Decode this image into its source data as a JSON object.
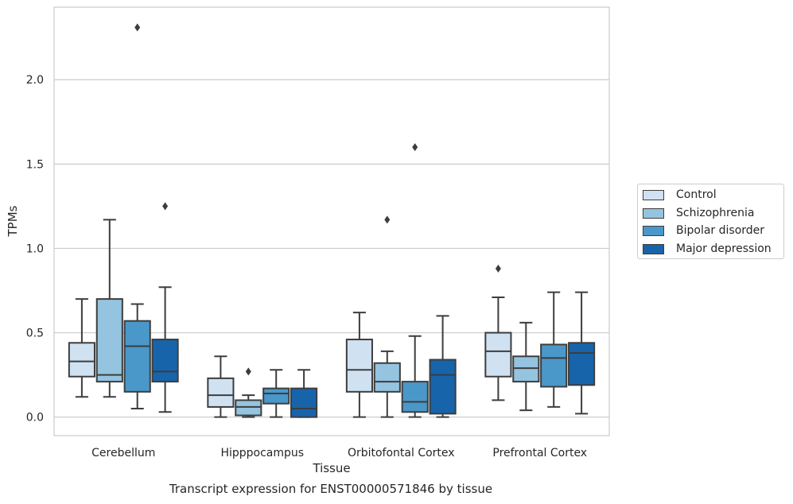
{
  "chart_data": {
    "type": "box",
    "title": "",
    "caption": "Transcript expression for ENST00000571846 by tissue",
    "xlabel": "Tissue",
    "ylabel": "TPMs",
    "ylim": [
      -0.11,
      2.43
    ],
    "yticks": [
      "0.0",
      "0.5",
      "1.0",
      "1.5",
      "2.0"
    ],
    "ytick_values": [
      0.0,
      0.5,
      1.0,
      1.5,
      2.0
    ],
    "grid": "horizontal",
    "legend_position": "right",
    "categories": [
      "Cerebellum",
      "Hipppocampus",
      "Orbitofontal Cortex",
      "Prefrontal Cortex"
    ],
    "series": [
      {
        "name": "Control",
        "color": "#d0e1f2",
        "boxes": [
          {
            "whisker_low": 0.12,
            "q1": 0.24,
            "median": 0.33,
            "q3": 0.44,
            "whisker_high": 0.7,
            "outliers": []
          },
          {
            "whisker_low": 0.0,
            "q1": 0.06,
            "median": 0.13,
            "q3": 0.23,
            "whisker_high": 0.36,
            "outliers": []
          },
          {
            "whisker_low": 0.0,
            "q1": 0.15,
            "median": 0.28,
            "q3": 0.46,
            "whisker_high": 0.62,
            "outliers": []
          },
          {
            "whisker_low": 0.1,
            "q1": 0.24,
            "median": 0.39,
            "q3": 0.5,
            "whisker_high": 0.71,
            "outliers": [
              0.88
            ]
          }
        ]
      },
      {
        "name": "Schizophrenia",
        "color": "#94c4df",
        "boxes": [
          {
            "whisker_low": 0.12,
            "q1": 0.21,
            "median": 0.25,
            "q3": 0.7,
            "whisker_high": 1.17,
            "outliers": []
          },
          {
            "whisker_low": 0.0,
            "q1": 0.01,
            "median": 0.06,
            "q3": 0.1,
            "whisker_high": 0.13,
            "outliers": [
              0.27
            ]
          },
          {
            "whisker_low": 0.0,
            "q1": 0.15,
            "median": 0.21,
            "q3": 0.32,
            "whisker_high": 0.39,
            "outliers": [
              1.17
            ]
          },
          {
            "whisker_low": 0.04,
            "q1": 0.21,
            "median": 0.29,
            "q3": 0.36,
            "whisker_high": 0.56,
            "outliers": []
          }
        ]
      },
      {
        "name": "Bipolar disorder",
        "color": "#4a98c9",
        "boxes": [
          {
            "whisker_low": 0.05,
            "q1": 0.15,
            "median": 0.42,
            "q3": 0.57,
            "whisker_high": 0.67,
            "outliers": [
              2.31
            ]
          },
          {
            "whisker_low": 0.0,
            "q1": 0.08,
            "median": 0.14,
            "q3": 0.17,
            "whisker_high": 0.28,
            "outliers": []
          },
          {
            "whisker_low": 0.0,
            "q1": 0.03,
            "median": 0.09,
            "q3": 0.21,
            "whisker_high": 0.48,
            "outliers": [
              1.6
            ]
          },
          {
            "whisker_low": 0.06,
            "q1": 0.18,
            "median": 0.35,
            "q3": 0.43,
            "whisker_high": 0.74,
            "outliers": []
          }
        ]
      },
      {
        "name": "Major depression",
        "color": "#1764ab",
        "boxes": [
          {
            "whisker_low": 0.03,
            "q1": 0.21,
            "median": 0.27,
            "q3": 0.46,
            "whisker_high": 0.77,
            "outliers": [
              1.25
            ]
          },
          {
            "whisker_low": 0.0,
            "q1": 0.0,
            "median": 0.05,
            "q3": 0.17,
            "whisker_high": 0.28,
            "outliers": []
          },
          {
            "whisker_low": 0.0,
            "q1": 0.02,
            "median": 0.25,
            "q3": 0.34,
            "whisker_high": 0.6,
            "outliers": []
          },
          {
            "whisker_low": 0.02,
            "q1": 0.19,
            "median": 0.38,
            "q3": 0.44,
            "whisker_high": 0.74,
            "outliers": []
          }
        ]
      }
    ]
  }
}
